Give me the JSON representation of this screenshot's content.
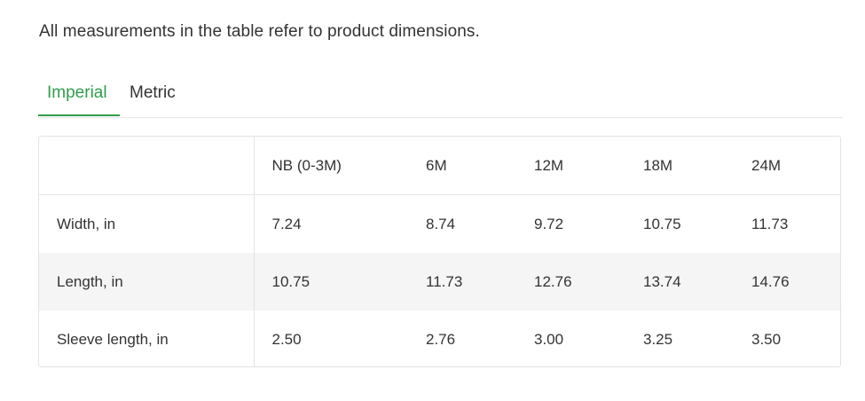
{
  "intro_text": "All measurements in the table refer to product dimensions.",
  "tabs": [
    {
      "label": "Imperial",
      "active": true
    },
    {
      "label": "Metric",
      "active": false
    }
  ],
  "colors": {
    "accent": "#2e9e4a",
    "text": "#333333",
    "border": "#e3e3e3",
    "row_shade": "#f5f5f5"
  },
  "table": {
    "headers": [
      "",
      "NB (0-3M)",
      "6M",
      "12M",
      "18M",
      "24M"
    ],
    "rows": [
      {
        "label": "Width, in",
        "values": [
          "7.24",
          "8.74",
          "9.72",
          "10.75",
          "11.73"
        ]
      },
      {
        "label": "Length, in",
        "values": [
          "10.75",
          "11.73",
          "12.76",
          "13.74",
          "14.76"
        ]
      },
      {
        "label": "Sleeve length, in",
        "values": [
          "2.50",
          "2.76",
          "3.00",
          "3.25",
          "3.50"
        ]
      }
    ]
  }
}
